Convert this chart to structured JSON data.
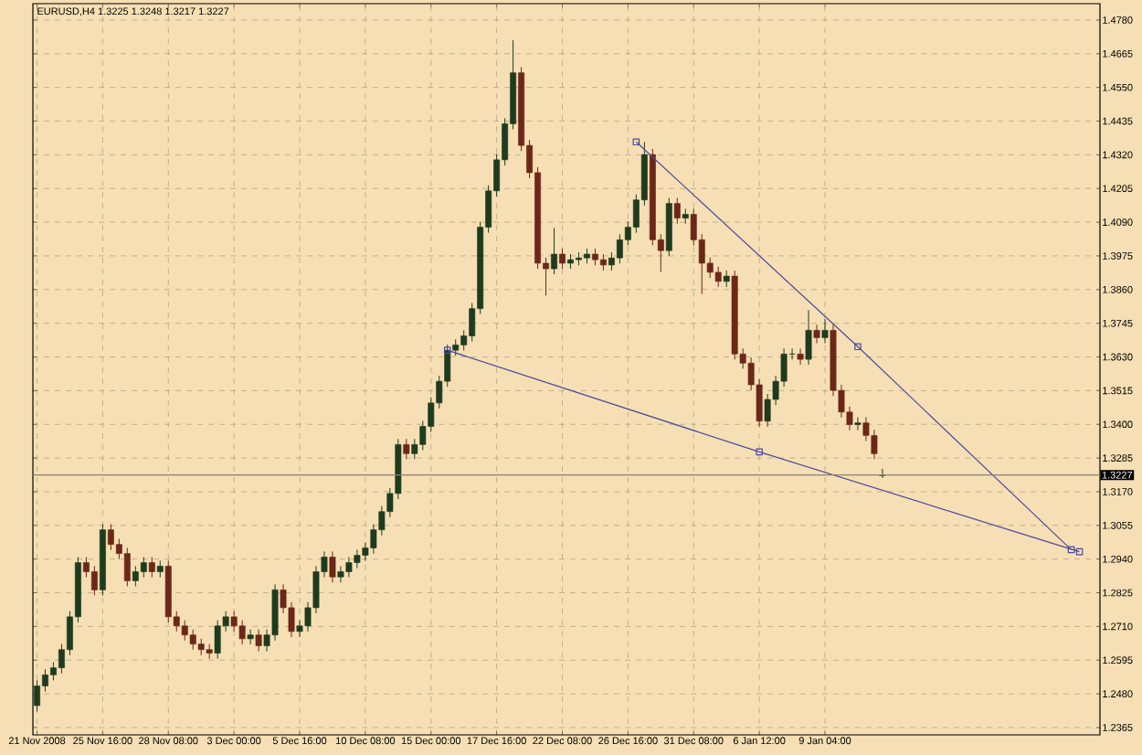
{
  "chart_data": {
    "type": "candlestick",
    "title": "EURUSD,H4  1.3225 1.3248 1.3217 1.3227",
    "categories": [
      "21 Nov 2008",
      null,
      null,
      null,
      null,
      null,
      null,
      null,
      "25 Nov 16:00",
      null,
      null,
      null,
      null,
      null,
      null,
      null,
      "28 Nov 08:00",
      null,
      null,
      null,
      null,
      null,
      null,
      null,
      "3 Dec 00:00",
      null,
      null,
      null,
      null,
      null,
      null,
      null,
      "5 Dec 16:00",
      null,
      null,
      null,
      null,
      null,
      null,
      null,
      "10 Dec 08:00",
      null,
      null,
      null,
      null,
      null,
      null,
      null,
      "15 Dec 00:00",
      null,
      null,
      null,
      null,
      null,
      null,
      null,
      "17 Dec 16:00",
      null,
      null,
      null,
      null,
      null,
      null,
      null,
      "22 Dec 08:00",
      null,
      null,
      null,
      null,
      null,
      null,
      null,
      "26 Dec 16:00",
      null,
      null,
      null,
      null,
      null,
      null,
      null,
      "31 Dec 08:00",
      null,
      null,
      null,
      null,
      null,
      null,
      null,
      "6 Jan 12:00",
      null,
      null,
      null,
      null,
      null,
      null,
      null,
      "9 Jan 04:00",
      null,
      null,
      null,
      null,
      null,
      null,
      null,
      null,
      null,
      null,
      null,
      null,
      null,
      null,
      null,
      null,
      null,
      null,
      null,
      null,
      null,
      null,
      null,
      null,
      null,
      null,
      null,
      null,
      null,
      null,
      null,
      null,
      null
    ],
    "ohlc": [
      [
        1.244,
        1.2526,
        1.242,
        1.2507
      ],
      [
        1.2507,
        1.2564,
        1.2488,
        1.2545
      ],
      [
        1.2545,
        1.2588,
        1.2526,
        1.2569
      ],
      [
        1.2569,
        1.265,
        1.255,
        1.2631
      ],
      [
        1.2631,
        1.2762,
        1.2612,
        1.2743
      ],
      [
        1.2743,
        1.2947,
        1.2724,
        1.2928
      ],
      [
        1.2928,
        1.2947,
        1.2878,
        1.2897
      ],
      [
        1.2897,
        1.2916,
        1.2816,
        1.2835
      ],
      [
        1.2835,
        1.3059,
        1.2816,
        1.304
      ],
      [
        1.304,
        1.3059,
        1.2971,
        1.299
      ],
      [
        1.299,
        1.3009,
        1.294,
        1.2959
      ],
      [
        1.2959,
        1.2978,
        1.2847,
        1.2866
      ],
      [
        1.2866,
        1.2916,
        1.2847,
        1.2897
      ],
      [
        1.2897,
        1.2947,
        1.2878,
        1.2928
      ],
      [
        1.2928,
        1.2947,
        1.2878,
        1.2897
      ],
      [
        1.2897,
        1.2935,
        1.2878,
        1.2916
      ],
      [
        1.2916,
        1.2935,
        1.2724,
        1.2743
      ],
      [
        1.2743,
        1.2762,
        1.2693,
        1.2712
      ],
      [
        1.2712,
        1.2731,
        1.2662,
        1.2681
      ],
      [
        1.2681,
        1.27,
        1.2631,
        1.265
      ],
      [
        1.265,
        1.2669,
        1.2612,
        1.2631
      ],
      [
        1.2631,
        1.265,
        1.26,
        1.2619
      ],
      [
        1.2619,
        1.2731,
        1.26,
        1.2712
      ],
      [
        1.2712,
        1.2762,
        1.2693,
        1.2743
      ],
      [
        1.2743,
        1.2762,
        1.2693,
        1.2712
      ],
      [
        1.2712,
        1.2731,
        1.2649,
        1.2668
      ],
      [
        1.2668,
        1.27,
        1.2649,
        1.2681
      ],
      [
        1.2681,
        1.27,
        1.2625,
        1.2644
      ],
      [
        1.2644,
        1.27,
        1.2625,
        1.2681
      ],
      [
        1.2681,
        1.2854,
        1.2662,
        1.2835
      ],
      [
        1.2835,
        1.2854,
        1.2755,
        1.2774
      ],
      [
        1.2774,
        1.2793,
        1.2674,
        1.2693
      ],
      [
        1.2693,
        1.2731,
        1.2674,
        1.2712
      ],
      [
        1.2712,
        1.2793,
        1.2693,
        1.2774
      ],
      [
        1.2774,
        1.2916,
        1.2755,
        1.2897
      ],
      [
        1.2897,
        1.2966,
        1.2878,
        1.2947
      ],
      [
        1.2947,
        1.2966,
        1.286,
        1.2879
      ],
      [
        1.2879,
        1.2916,
        1.286,
        1.2897
      ],
      [
        1.2897,
        1.2947,
        1.2878,
        1.2928
      ],
      [
        1.2928,
        1.2972,
        1.2909,
        1.2953
      ],
      [
        1.2953,
        1.2997,
        1.2934,
        1.2978
      ],
      [
        1.2978,
        1.3059,
        1.2959,
        1.304
      ],
      [
        1.304,
        1.3121,
        1.3021,
        1.3102
      ],
      [
        1.3102,
        1.3183,
        1.3083,
        1.3164
      ],
      [
        1.3164,
        1.335,
        1.3145,
        1.3331
      ],
      [
        1.3331,
        1.335,
        1.3281,
        1.33
      ],
      [
        1.33,
        1.335,
        1.3281,
        1.3331
      ],
      [
        1.3331,
        1.3412,
        1.3312,
        1.3393
      ],
      [
        1.3393,
        1.3492,
        1.3374,
        1.3473
      ],
      [
        1.3473,
        1.3566,
        1.3454,
        1.3547
      ],
      [
        1.3547,
        1.3672,
        1.3528,
        1.3653
      ],
      [
        1.3653,
        1.369,
        1.3634,
        1.3671
      ],
      [
        1.3671,
        1.3721,
        1.3652,
        1.3702
      ],
      [
        1.3702,
        1.3814,
        1.3683,
        1.3795
      ],
      [
        1.3795,
        1.4092,
        1.3776,
        1.4073
      ],
      [
        1.4073,
        1.4216,
        1.4054,
        1.4197
      ],
      [
        1.4197,
        1.4322,
        1.4178,
        1.4303
      ],
      [
        1.4303,
        1.4445,
        1.4284,
        1.4426
      ],
      [
        1.4426,
        1.4711,
        1.4407,
        1.46
      ],
      [
        1.46,
        1.4619,
        1.4333,
        1.4352
      ],
      [
        1.4352,
        1.4371,
        1.424,
        1.4259
      ],
      [
        1.4259,
        1.4278,
        1.3931,
        1.395
      ],
      [
        1.395,
        1.3969,
        1.384,
        1.3931
      ],
      [
        1.3931,
        1.407,
        1.3912,
        1.3981
      ],
      [
        1.3981,
        1.4,
        1.3931,
        1.395
      ],
      [
        1.395,
        1.3981,
        1.3931,
        1.3962
      ],
      [
        1.3962,
        1.3987,
        1.3943,
        1.3968
      ],
      [
        1.3968,
        1.4,
        1.3949,
        1.3981
      ],
      [
        1.3981,
        1.4,
        1.3943,
        1.3962
      ],
      [
        1.3962,
        1.3981,
        1.3925,
        1.3944
      ],
      [
        1.3944,
        1.3987,
        1.3925,
        1.3968
      ],
      [
        1.3968,
        1.4049,
        1.3949,
        1.403
      ],
      [
        1.403,
        1.4092,
        1.4011,
        1.4073
      ],
      [
        1.4073,
        1.4185,
        1.4054,
        1.4166
      ],
      [
        1.4166,
        1.4364,
        1.4147,
        1.4321
      ],
      [
        1.4321,
        1.434,
        1.4011,
        1.403
      ],
      [
        1.403,
        1.4049,
        1.392,
        1.3993
      ],
      [
        1.3993,
        1.4173,
        1.3974,
        1.4154
      ],
      [
        1.4154,
        1.4173,
        1.4085,
        1.4104
      ],
      [
        1.4104,
        1.4136,
        1.4085,
        1.4117
      ],
      [
        1.4117,
        1.4136,
        1.4011,
        1.403
      ],
      [
        1.403,
        1.4049,
        1.3845,
        1.395
      ],
      [
        1.395,
        1.3969,
        1.39,
        1.3919
      ],
      [
        1.3919,
        1.3938,
        1.3869,
        1.3888
      ],
      [
        1.3888,
        1.3925,
        1.3869,
        1.3906
      ],
      [
        1.3906,
        1.3925,
        1.3621,
        1.364
      ],
      [
        1.364,
        1.3659,
        1.359,
        1.3609
      ],
      [
        1.3609,
        1.3628,
        1.3516,
        1.3535
      ],
      [
        1.3535,
        1.3554,
        1.3392,
        1.3411
      ],
      [
        1.3411,
        1.3504,
        1.3392,
        1.3485
      ],
      [
        1.3485,
        1.3566,
        1.3466,
        1.3547
      ],
      [
        1.3547,
        1.3659,
        1.3528,
        1.364
      ],
      [
        1.364,
        1.3659,
        1.3621,
        1.364
      ],
      [
        1.364,
        1.3659,
        1.3603,
        1.3622
      ],
      [
        1.3622,
        1.379,
        1.3603,
        1.3721
      ],
      [
        1.3721,
        1.374,
        1.3677,
        1.3696
      ],
      [
        1.3696,
        1.376,
        1.3677,
        1.3721
      ],
      [
        1.3721,
        1.374,
        1.3497,
        1.3516
      ],
      [
        1.3516,
        1.3535,
        1.3423,
        1.3442
      ],
      [
        1.3442,
        1.3461,
        1.338,
        1.3399
      ],
      [
        1.3399,
        1.3424,
        1.338,
        1.3405
      ],
      [
        1.3405,
        1.3424,
        1.3343,
        1.3362
      ],
      [
        1.3362,
        1.3381,
        1.3281,
        1.33
      ],
      [
        1.3225,
        1.3248,
        1.3217,
        1.3227
      ],
      null,
      null,
      null,
      null,
      null,
      null,
      null,
      null,
      null,
      null,
      null,
      null,
      null,
      null,
      null,
      null,
      null,
      null,
      null,
      null,
      null,
      null,
      null,
      null,
      null,
      null
    ],
    "colors": [
      "#1e3b1e",
      "#1e3b1e",
      "#1e3b1e",
      "#1e3b1e",
      "#1e3b1e",
      "#1e3b1e",
      "#6b2718",
      "#6b2718",
      "#1e3b1e",
      "#6b2718",
      "#6b2718",
      "#6b2718",
      "#1e3b1e",
      "#1e3b1e",
      "#6b2718",
      "#1e3b1e",
      "#6b2718",
      "#6b2718",
      "#6b2718",
      "#6b2718",
      "#6b2718",
      "#6b2718",
      "#1e3b1e",
      "#1e3b1e",
      "#6b2718",
      "#6b2718",
      "#1e3b1e",
      "#6b2718",
      "#1e3b1e",
      "#1e3b1e",
      "#6b2718",
      "#6b2718",
      "#1e3b1e",
      "#1e3b1e",
      "#1e3b1e",
      "#1e3b1e",
      "#6b2718",
      "#1e3b1e",
      "#1e3b1e",
      "#1e3b1e",
      "#1e3b1e",
      "#1e3b1e",
      "#1e3b1e",
      "#1e3b1e",
      "#1e3b1e",
      "#6b2718",
      "#1e3b1e",
      "#1e3b1e",
      "#1e3b1e",
      "#1e3b1e",
      "#1e3b1e",
      "#1e3b1e",
      "#1e3b1e",
      "#1e3b1e",
      "#1e3b1e",
      "#1e3b1e",
      "#1e3b1e",
      "#1e3b1e",
      "#1e3b1e",
      "#6b2718",
      "#6b2718",
      "#6b2718",
      "#6b2718",
      "#1e3b1e",
      "#6b2718",
      "#1e3b1e",
      "#1e3b1e",
      "#1e3b1e",
      "#6b2718",
      "#6b2718",
      "#1e3b1e",
      "#1e3b1e",
      "#1e3b1e",
      "#1e3b1e",
      "#1e3b1e",
      "#6b2718",
      "#6b2718",
      "#1e3b1e",
      "#6b2718",
      "#1e3b1e",
      "#6b2718",
      "#6b2718",
      "#6b2718",
      "#6b2718",
      "#1e3b1e",
      "#6b2718",
      "#6b2718",
      "#6b2718",
      "#6b2718",
      "#1e3b1e",
      "#1e3b1e",
      "#1e3b1e",
      "#1e3b1e",
      "#6b2718",
      "#1e3b1e",
      "#6b2718",
      "#1e3b1e",
      "#6b2718",
      "#6b2718",
      "#6b2718",
      "#1e3b1e",
      "#6b2718",
      "#6b2718",
      "#1e3b1e",
      null,
      null,
      null,
      null,
      null,
      null,
      null,
      null,
      null,
      null,
      null,
      null,
      null,
      null,
      null,
      null,
      null,
      null,
      null,
      null,
      null,
      null,
      null,
      null,
      null,
      null
    ],
    "series": [
      {
        "type": "line",
        "color": "#4a4aa0",
        "marker": "square",
        "values": [
          null,
          null,
          null,
          null,
          null,
          null,
          null,
          null,
          null,
          null,
          null,
          null,
          null,
          null,
          null,
          null,
          null,
          null,
          null,
          null,
          null,
          null,
          null,
          null,
          null,
          null,
          null,
          null,
          null,
          null,
          null,
          null,
          null,
          null,
          null,
          null,
          null,
          null,
          null,
          null,
          null,
          null,
          null,
          null,
          null,
          null,
          null,
          null,
          null,
          null,
          1.3653,
          null,
          null,
          null,
          null,
          null,
          null,
          null,
          null,
          null,
          null,
          null,
          null,
          null,
          null,
          null,
          null,
          null,
          null,
          null,
          null,
          null,
          null,
          null,
          null,
          null,
          null,
          null,
          null,
          null,
          null,
          null,
          null,
          null,
          null,
          null,
          null,
          null,
          1.3306,
          null,
          null,
          null,
          null,
          null,
          null,
          null,
          null,
          null,
          null,
          null,
          null,
          null,
          null,
          null,
          null,
          null,
          null,
          null,
          null,
          null,
          null,
          null,
          null,
          null,
          null,
          null,
          null,
          null,
          null,
          null,
          null,
          null,
          null,
          null,
          null,
          null,
          null,
          1.2965,
          null,
          null
        ]
      },
      {
        "type": "line",
        "color": "#4a4aa0",
        "marker": "square",
        "values": [
          null,
          null,
          null,
          null,
          null,
          null,
          null,
          null,
          null,
          null,
          null,
          null,
          null,
          null,
          null,
          null,
          null,
          null,
          null,
          null,
          null,
          null,
          null,
          null,
          null,
          null,
          null,
          null,
          null,
          null,
          null,
          null,
          null,
          null,
          null,
          null,
          null,
          null,
          null,
          null,
          null,
          null,
          null,
          null,
          null,
          null,
          null,
          null,
          null,
          null,
          null,
          null,
          null,
          null,
          null,
          null,
          null,
          null,
          null,
          null,
          null,
          null,
          null,
          null,
          null,
          null,
          null,
          null,
          null,
          null,
          null,
          null,
          null,
          1.4364,
          null,
          null,
          null,
          null,
          null,
          null,
          null,
          null,
          null,
          null,
          null,
          null,
          null,
          null,
          null,
          null,
          null,
          null,
          null,
          null,
          null,
          null,
          null,
          null,
          null,
          null,
          1.3665,
          null,
          null,
          null,
          null,
          null,
          null,
          null,
          null,
          null,
          null,
          null,
          null,
          null,
          null,
          null,
          null,
          null,
          null,
          null,
          null,
          null,
          null,
          null,
          null,
          null,
          1.2972,
          null,
          null,
          null
        ]
      }
    ],
    "ref_lines": [
      {
        "axis": "y",
        "value": 1.3227,
        "label": "1.3227",
        "color": "#8c7f70"
      }
    ],
    "ylim": [
      1.234,
      1.4836
    ],
    "yticks": [
      {
        "value": 1.2365,
        "label": "1.2365"
      },
      {
        "value": 1.248,
        "label": "1.2480"
      },
      {
        "value": 1.2595,
        "label": "1.2595"
      },
      {
        "value": 1.271,
        "label": "1.2710"
      },
      {
        "value": 1.2825,
        "label": "1.2825"
      },
      {
        "value": 1.294,
        "label": "1.2940"
      },
      {
        "value": 1.3055,
        "label": "1.3055"
      },
      {
        "value": 1.317,
        "label": "1.3170"
      },
      {
        "value": 1.3285,
        "label": "1.3285"
      },
      {
        "value": 1.34,
        "label": "1.3400"
      },
      {
        "value": 1.3515,
        "label": "1.3515"
      },
      {
        "value": 1.363,
        "label": "1.3630"
      },
      {
        "value": 1.3745,
        "label": "1.3745"
      },
      {
        "value": 1.386,
        "label": "1.3860"
      },
      {
        "value": 1.3975,
        "label": "1.3975"
      },
      {
        "value": 1.409,
        "label": "1.4090"
      },
      {
        "value": 1.4205,
        "label": "1.4205"
      },
      {
        "value": 1.432,
        "label": "1.4320"
      },
      {
        "value": 1.4435,
        "label": "1.4435"
      },
      {
        "value": 1.455,
        "label": "1.4550"
      },
      {
        "value": 1.4665,
        "label": "1.4665"
      },
      {
        "value": 1.478,
        "label": "1.4780"
      }
    ],
    "grid": true
  }
}
